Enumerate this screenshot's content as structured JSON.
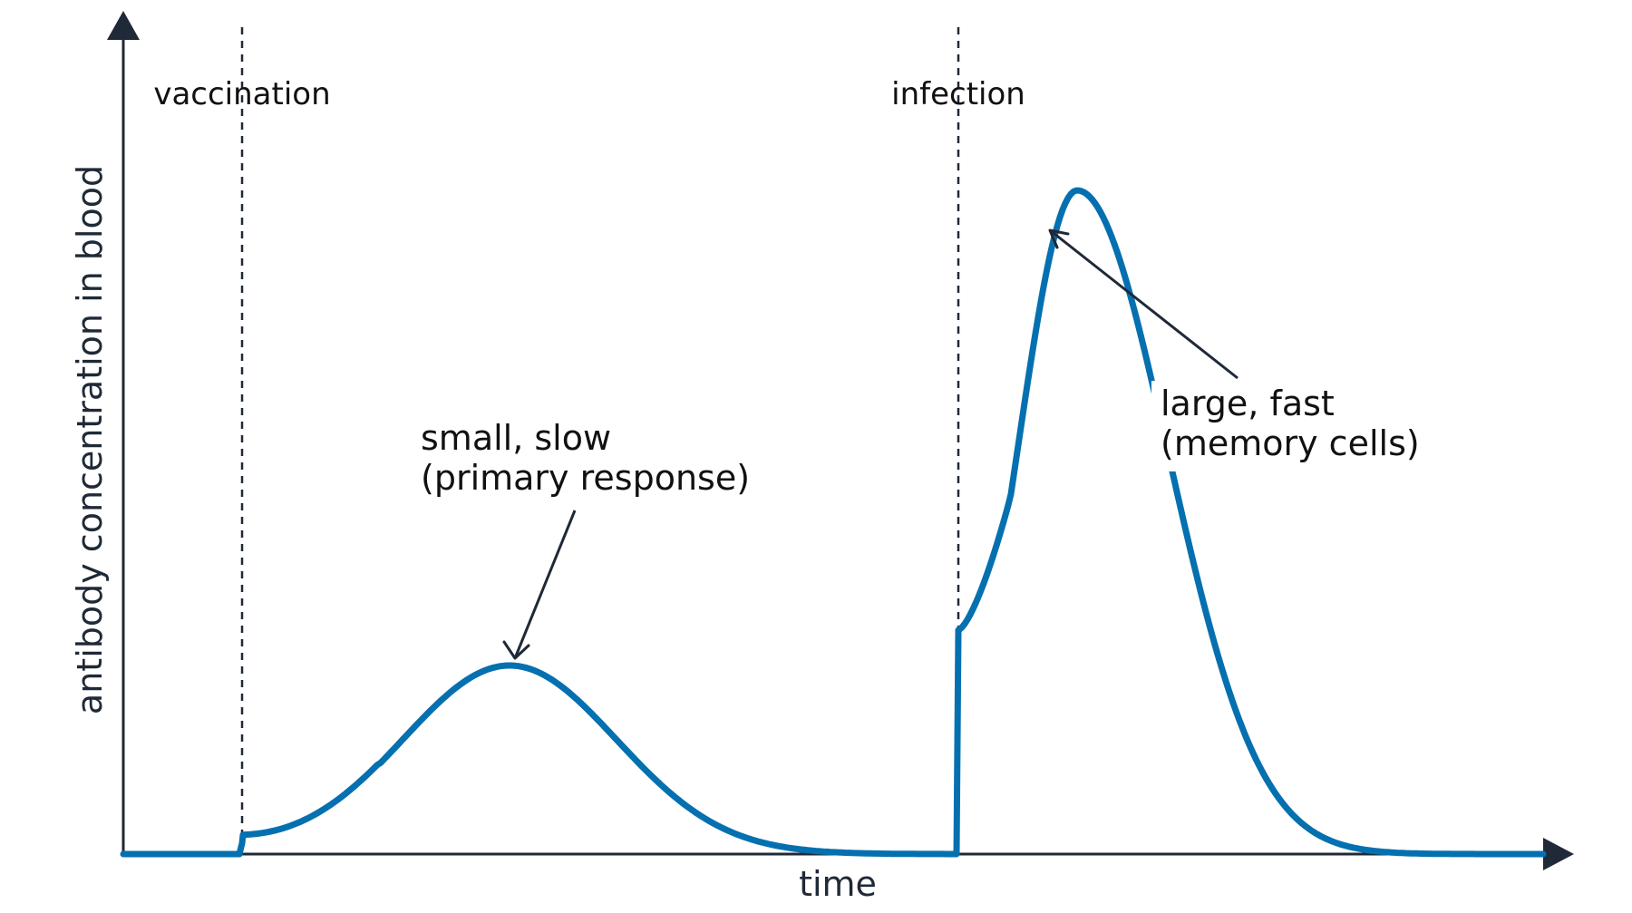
{
  "diagram": {
    "axes": {
      "x_label": "time",
      "y_label": "antibody concentration in blood"
    },
    "events": [
      {
        "id": "vaccination",
        "label": "vaccination"
      },
      {
        "id": "infection",
        "label": "infection"
      }
    ],
    "annotations": {
      "primary": {
        "line1": "small, slow",
        "line2": "(primary response)"
      },
      "secondary": {
        "line1": "large, fast",
        "line2": "(memory cells)"
      }
    },
    "colors": {
      "curve": "#0570b0",
      "axes": "#1f2937",
      "text": "#111111"
    }
  }
}
